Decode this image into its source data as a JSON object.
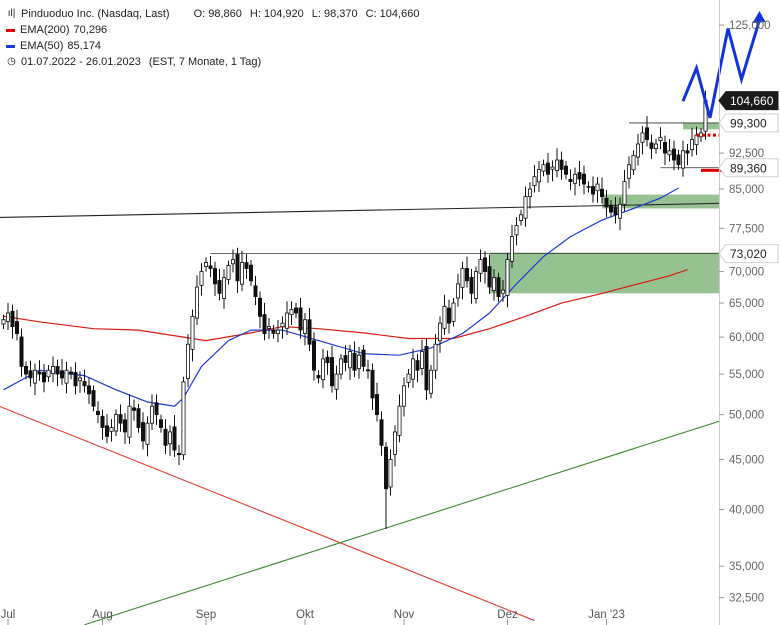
{
  "legend": {
    "title": "Pinduoduo Inc. (Nasdaq, Last)",
    "ohlc": {
      "o": "O: 98,860",
      "h": "H: 104,920",
      "l": "L: 98,370",
      "c": "C: 104,660"
    },
    "ema200": {
      "label": "EMA(200)",
      "value": "70,296",
      "color": "#e00000"
    },
    "ema50": {
      "label": "EMA(50)",
      "value": "85,174",
      "color": "#1f3bd6"
    },
    "range": {
      "dates": "01.07.2022 - 26.01.2023",
      "info": "(EST, 7 Monate, 1 Tag)"
    }
  },
  "chart_data": {
    "type": "candlestick",
    "y_scale": "log",
    "ylim": [
      31.5,
      128
    ],
    "y_ticks": [
      {
        "v": 125,
        "label": "125,000"
      },
      {
        "v": 92.5,
        "label": "92,500"
      },
      {
        "v": 85,
        "label": "85,000"
      },
      {
        "v": 77.5,
        "label": "77,500"
      },
      {
        "v": 70,
        "label": "70,000"
      },
      {
        "v": 65,
        "label": "65,000"
      },
      {
        "v": 60,
        "label": "60,000"
      },
      {
        "v": 55,
        "label": "55,000"
      },
      {
        "v": 50,
        "label": "50,000"
      },
      {
        "v": 45,
        "label": "45,000"
      },
      {
        "v": 40,
        "label": "40,000"
      },
      {
        "v": 35,
        "label": "35,000"
      },
      {
        "v": 32.5,
        "label": "32,500"
      }
    ],
    "x_labels": [
      {
        "bar": 1,
        "label": "Jul"
      },
      {
        "bar": 22,
        "label": "Aug"
      },
      {
        "bar": 45,
        "label": "Sep"
      },
      {
        "bar": 67,
        "label": "Okt"
      },
      {
        "bar": 89,
        "label": "Nov"
      },
      {
        "bar": 112,
        "label": "Dez"
      },
      {
        "bar": 134,
        "label": "Jan '23"
      }
    ],
    "price_labels": [
      {
        "v": 104.66,
        "label": "104,660",
        "style": "dark"
      },
      {
        "v": 99.3,
        "label": "99,300",
        "style": "light"
      },
      {
        "v": 89.36,
        "label": "89,360",
        "style": "light"
      },
      {
        "v": 73.02,
        "label": "73,020",
        "style": "light"
      }
    ],
    "closes": [
      62.5,
      63.5,
      61.5,
      60.5,
      56,
      55,
      54.5,
      55.5,
      55,
      54,
      55.5,
      56,
      55,
      54.5,
      55.5,
      55,
      53.5,
      54.5,
      53.5,
      52.5,
      51,
      50,
      48.5,
      47.5,
      48.5,
      50,
      49,
      48,
      51,
      50.5,
      48.5,
      47,
      49,
      51,
      50,
      48.5,
      46.5,
      48,
      46,
      45.5,
      54,
      59,
      63,
      67.5,
      70,
      71.5,
      70.5,
      68,
      66.5,
      69,
      71,
      72,
      68.5,
      71.5,
      70.5,
      68.5,
      66,
      63,
      60.5,
      61.5,
      60.5,
      61,
      62,
      63.5,
      64,
      63.5,
      61,
      62.5,
      59,
      55.5,
      54.5,
      57,
      56.5,
      53.5,
      55,
      57,
      56.5,
      58,
      55.5,
      57.5,
      56,
      55.5,
      52,
      50,
      46.5,
      42,
      45,
      48,
      51,
      53.5,
      55,
      57,
      55.5,
      58,
      53,
      55.5,
      59,
      62,
      64.5,
      62,
      65,
      68,
      70.5,
      68.5,
      66.5,
      70,
      72,
      70,
      67.5,
      69,
      66,
      67,
      72,
      76,
      78,
      80,
      83.5,
      85,
      87.5,
      89,
      90,
      88,
      89.5,
      91,
      89,
      88,
      86.5,
      88,
      87,
      86,
      85.5,
      84,
      86,
      83.5,
      81.5,
      80.5,
      80,
      82,
      86.5,
      90,
      92,
      94.5,
      97,
      95.5,
      93.5,
      94.5,
      96,
      92.5,
      93,
      91,
      90,
      93,
      92.5,
      95.5,
      96.5,
      97,
      104.66
    ],
    "ema200": [
      [
        0,
        63
      ],
      [
        8,
        62.2
      ],
      [
        20,
        61.2
      ],
      [
        30,
        61
      ],
      [
        45,
        59.5
      ],
      [
        55,
        60.6
      ],
      [
        62,
        61.5
      ],
      [
        70,
        61.2
      ],
      [
        80,
        60.6
      ],
      [
        90,
        59.8
      ],
      [
        100,
        59.8
      ],
      [
        108,
        61.2
      ],
      [
        116,
        63
      ],
      [
        124,
        65
      ],
      [
        133,
        66.5
      ],
      [
        141,
        68
      ],
      [
        148,
        69.3
      ],
      [
        152,
        70.3
      ]
    ],
    "ema50": [
      [
        0,
        53
      ],
      [
        8,
        55.5
      ],
      [
        18,
        54.8
      ],
      [
        25,
        53
      ],
      [
        32,
        51.5
      ],
      [
        38,
        51
      ],
      [
        40,
        52
      ],
      [
        44,
        56
      ],
      [
        50,
        59.5
      ],
      [
        55,
        61
      ],
      [
        62,
        61
      ],
      [
        70,
        59.5
      ],
      [
        80,
        57.7
      ],
      [
        88,
        57.5
      ],
      [
        95,
        58.5
      ],
      [
        102,
        60.5
      ],
      [
        108,
        63.5
      ],
      [
        114,
        68
      ],
      [
        120,
        72.5
      ],
      [
        126,
        76
      ],
      [
        133,
        79
      ],
      [
        140,
        81.2
      ],
      [
        146,
        83.2
      ],
      [
        150,
        85.2
      ]
    ],
    "lines": [
      {
        "name": "black-trendline",
        "color": "#222222",
        "points": [
          [
            -1,
            79.5
          ],
          [
            178,
            82.5
          ]
        ]
      },
      {
        "name": "red-trendline",
        "color": "#e33a2c",
        "points": [
          [
            -1,
            51
          ],
          [
            118,
            30.8
          ]
        ]
      },
      {
        "name": "green-trendline",
        "color": "#3c8a2e",
        "points": [
          [
            18,
            30.5
          ],
          [
            178,
            52.5
          ]
        ]
      }
    ],
    "resistance_lines": [
      {
        "v": 73.02,
        "from": 46,
        "to": 178
      },
      {
        "v": 99.3,
        "from": 139,
        "to": 178
      },
      {
        "v": 89.36,
        "from": 146,
        "to": 178
      }
    ],
    "zones": [
      {
        "from": 108,
        "to": 178,
        "low": 66.5,
        "high": 73.2
      },
      {
        "from": 133,
        "to": 178,
        "low": 81.2,
        "high": 83.9
      },
      {
        "from": 151,
        "to": 178,
        "low": 97.8,
        "high": 99.3
      }
    ],
    "projection": [
      [
        151,
        104.5
      ],
      [
        154,
        113
      ],
      [
        157,
        100.5
      ],
      [
        161,
        124
      ],
      [
        164,
        110
      ],
      [
        168,
        126.5
      ]
    ],
    "target_marks": [
      {
        "v": 96.5,
        "from": 154,
        "to": 159,
        "style": "dotted"
      },
      {
        "v": 88.8,
        "from": 155,
        "to": 160,
        "style": "solid"
      }
    ]
  }
}
